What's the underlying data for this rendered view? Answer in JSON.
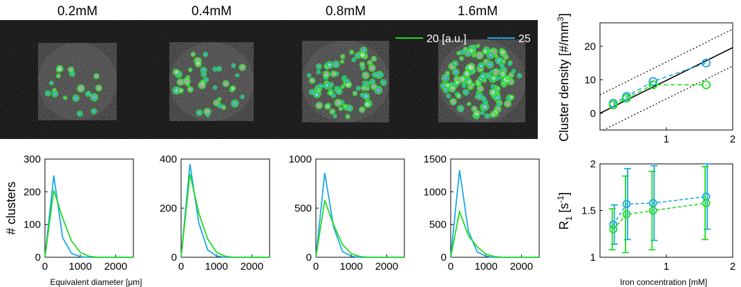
{
  "colors": {
    "green": "#1fdc1f",
    "blue": "#1aa7e6",
    "dark": "#000000"
  },
  "images": {
    "titles": [
      "0.2mM",
      "0.4mM",
      "0.8mM",
      "1.6mM"
    ],
    "cluster_counts": [
      18,
      38,
      80,
      130
    ],
    "legend": [
      {
        "label": "20 [a.u.]",
        "color": "#1fdc1f"
      },
      {
        "label": "25",
        "color": "#1aa7e6"
      }
    ]
  },
  "chart_data": [
    {
      "type": "line",
      "ylabel": "# clusters",
      "xlabel": "Equivalent diameter [μm]",
      "xlim": [
        0,
        2500
      ],
      "ylim": [
        0,
        300
      ],
      "xticks": [
        0,
        1000,
        2000
      ],
      "yticks": [
        0,
        100,
        200,
        300
      ],
      "x": [
        0,
        250,
        500,
        750,
        1000,
        1250,
        1500,
        2000,
        2500
      ],
      "series": [
        {
          "color": "#1aa7e6",
          "values": [
            0,
            250,
            60,
            12,
            2,
            0,
            0,
            0,
            0
          ]
        },
        {
          "color": "#1fdc1f",
          "values": [
            0,
            205,
            120,
            50,
            15,
            3,
            0,
            0,
            0
          ]
        }
      ]
    },
    {
      "type": "line",
      "xlim": [
        0,
        2500
      ],
      "ylim": [
        0,
        400
      ],
      "xticks": [
        0,
        1000,
        2000
      ],
      "yticks": [
        0,
        200,
        400
      ],
      "x": [
        0,
        250,
        500,
        750,
        1000,
        1250,
        1500,
        2000,
        2500
      ],
      "series": [
        {
          "color": "#1aa7e6",
          "values": [
            0,
            380,
            140,
            30,
            5,
            0,
            0,
            0,
            0
          ]
        },
        {
          "color": "#1fdc1f",
          "values": [
            0,
            340,
            180,
            75,
            20,
            4,
            0,
            0,
            0
          ]
        }
      ]
    },
    {
      "type": "line",
      "xlim": [
        0,
        2500
      ],
      "ylim": [
        0,
        1000
      ],
      "xticks": [
        0,
        1000,
        2000
      ],
      "yticks": [
        0,
        500,
        1000
      ],
      "x": [
        0,
        250,
        500,
        750,
        1000,
        1250,
        1500,
        2000,
        2500
      ],
      "series": [
        {
          "color": "#1aa7e6",
          "values": [
            0,
            860,
            310,
            60,
            10,
            0,
            0,
            0,
            0
          ]
        },
        {
          "color": "#1fdc1f",
          "values": [
            0,
            580,
            330,
            130,
            35,
            8,
            0,
            0,
            0
          ]
        }
      ]
    },
    {
      "type": "line",
      "xlim": [
        0,
        2500
      ],
      "ylim": [
        0,
        1500
      ],
      "xticks": [
        0,
        1000,
        2000
      ],
      "yticks": [
        0,
        500,
        1000,
        1500
      ],
      "x": [
        0,
        250,
        500,
        750,
        1000,
        1250,
        1500,
        2000,
        2500
      ],
      "series": [
        {
          "color": "#1aa7e6",
          "values": [
            0,
            1330,
            400,
            80,
            15,
            0,
            0,
            0,
            0
          ]
        },
        {
          "color": "#1fdc1f",
          "values": [
            0,
            700,
            330,
            160,
            45,
            10,
            0,
            0,
            0
          ]
        }
      ]
    },
    {
      "type": "scatter",
      "ylabel_main": "Cluster density [#/mm",
      "ylabel_sup": "3",
      "ylabel_end": "]",
      "xlim": [
        0,
        2
      ],
      "ylim": [
        -5,
        27
      ],
      "xticks": [
        1,
        2
      ],
      "yticks": [
        0,
        10,
        20
      ],
      "x": [
        0.2,
        0.4,
        0.8,
        1.6
      ],
      "series": [
        {
          "color": "#1aa7e6",
          "values": [
            3.0,
            5.0,
            9.5,
            15.0
          ]
        },
        {
          "color": "#1fdc1f",
          "values": [
            2.5,
            4.5,
            8.5,
            8.5
          ]
        }
      ],
      "fit": {
        "slope": 9.8,
        "intercept": 0.0,
        "band": 5.5,
        "x0": 0,
        "x1": 2
      }
    },
    {
      "type": "scatter",
      "ylabel_main": "R",
      "ylabel_sub": "1",
      "ylabel_rest": " [s",
      "ylabel_sup": "-1",
      "ylabel_end": "]",
      "xlabel": "Iron concentration [mM]",
      "xlim": [
        0,
        2
      ],
      "ylim": [
        1,
        2
      ],
      "xticks": [
        1,
        2
      ],
      "yticks": [
        1,
        1.5,
        2
      ],
      "x": [
        0.2,
        0.4,
        0.8,
        1.6
      ],
      "series": [
        {
          "color": "#1aa7e6",
          "values": [
            1.35,
            1.57,
            1.58,
            1.65
          ],
          "err": [
            0.21,
            0.38,
            0.4,
            0.35
          ]
        },
        {
          "color": "#1fdc1f",
          "values": [
            1.3,
            1.46,
            1.5,
            1.58
          ],
          "err": [
            0.22,
            0.41,
            0.42,
            0.39
          ]
        }
      ]
    }
  ]
}
